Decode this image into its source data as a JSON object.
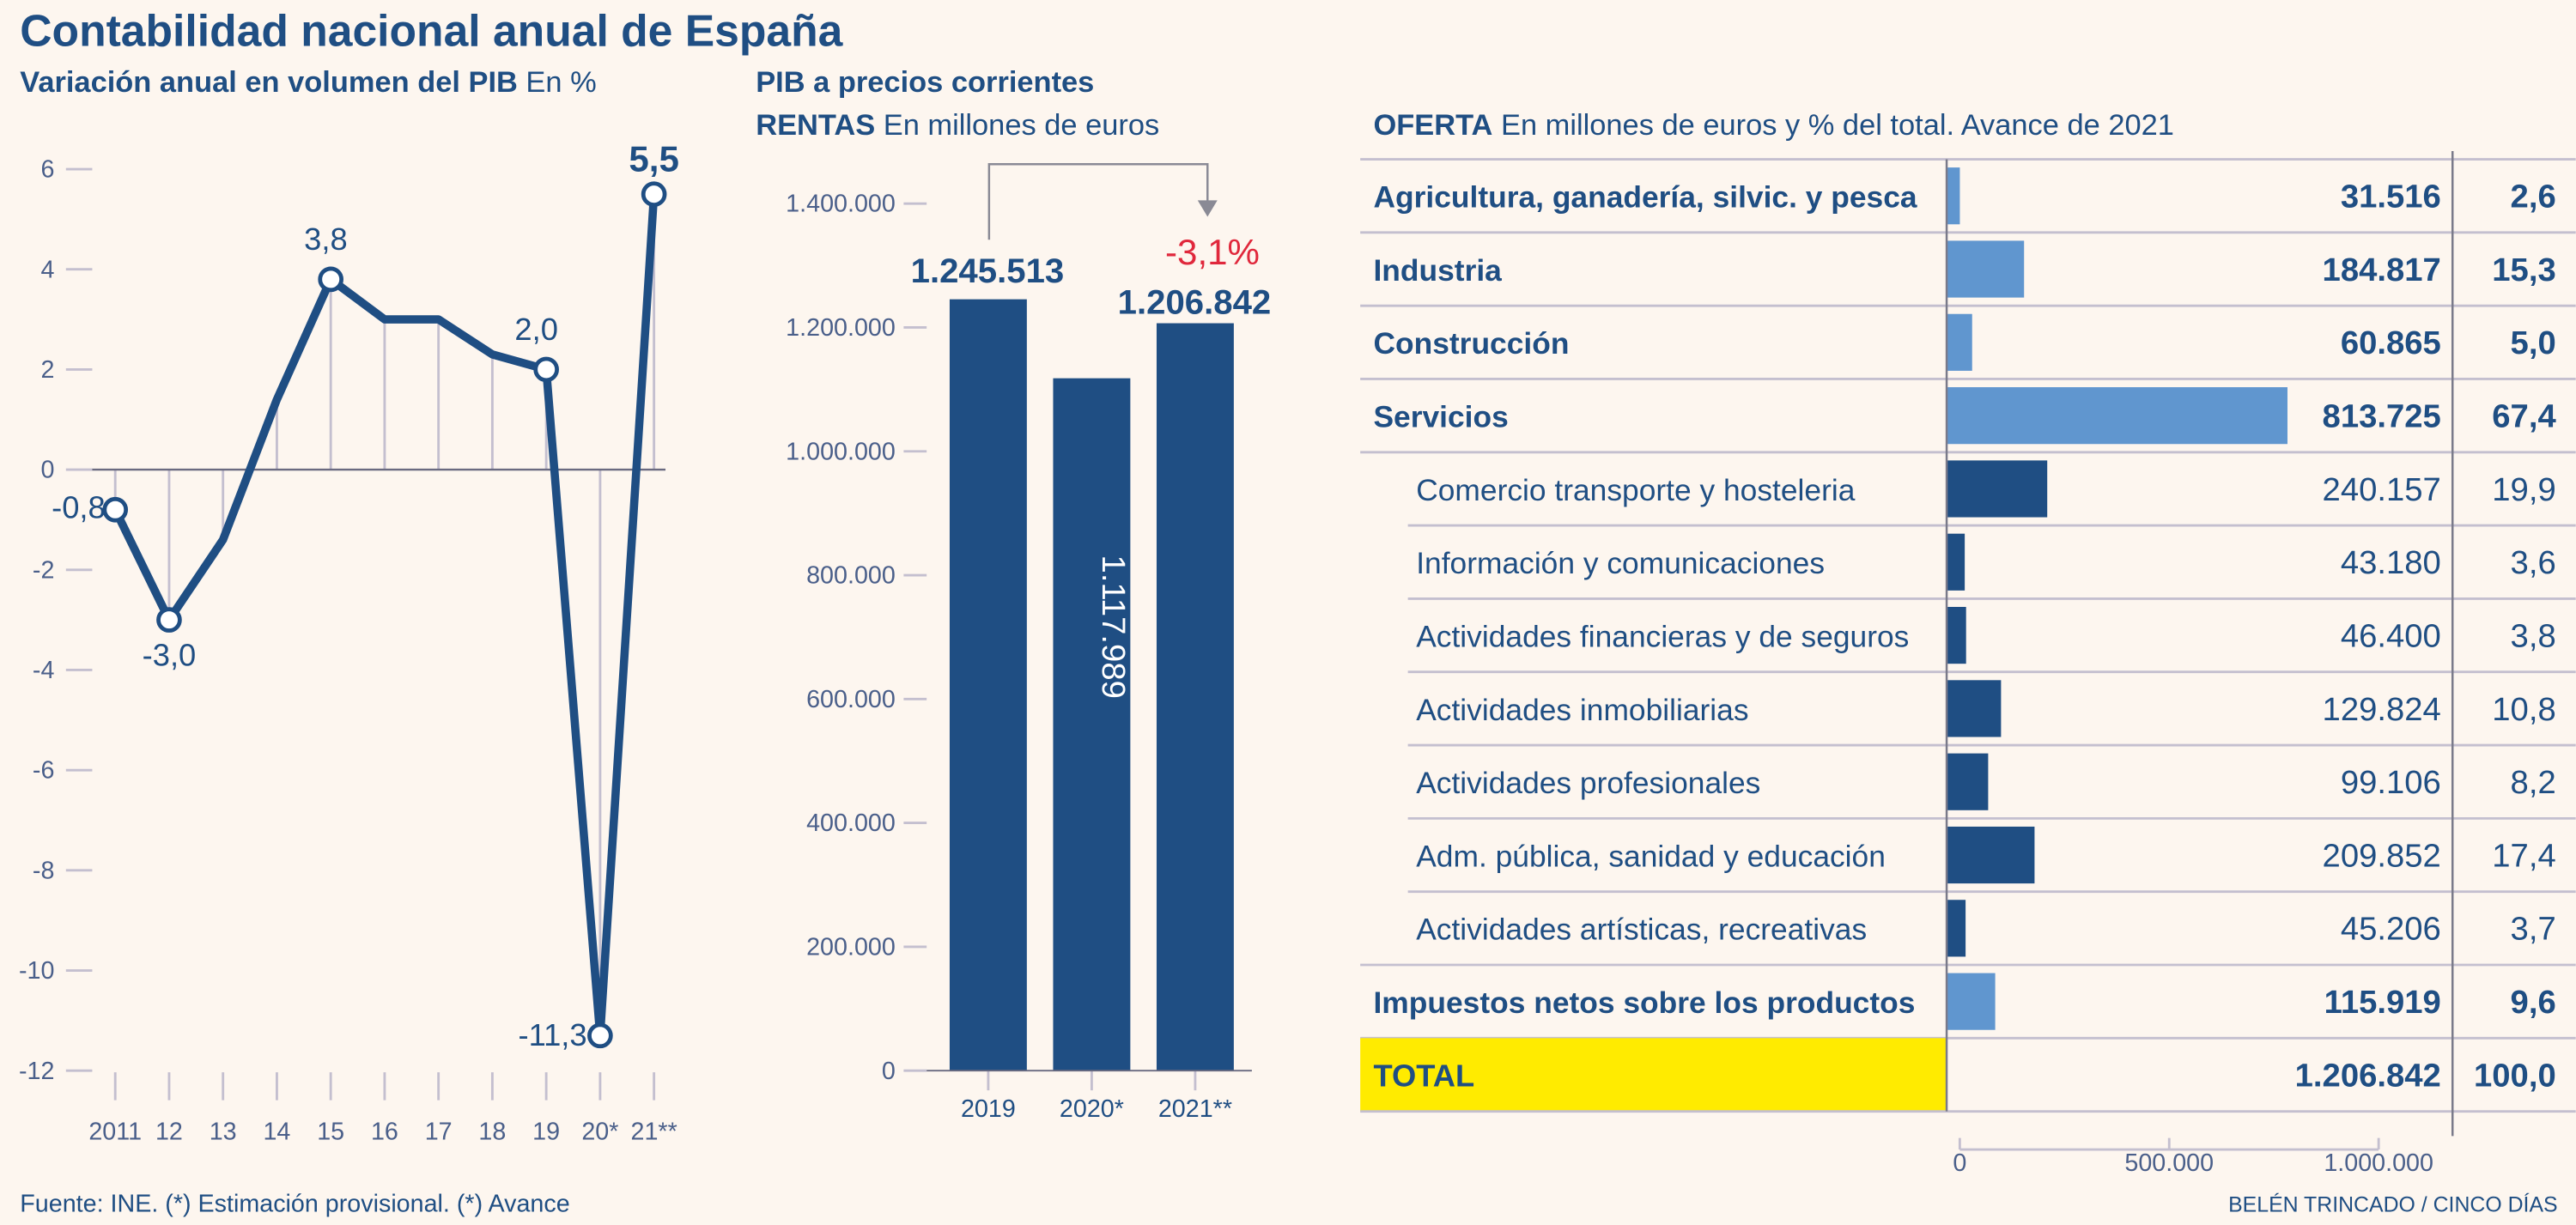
{
  "title": "Contabilidad nacional anual de España",
  "colors": {
    "primary": "#1f4e83",
    "light_bar": "#6096cf",
    "grid": "#c4bfcf",
    "background": "#fdf6ef",
    "highlight": "#e0283c",
    "total": "#ffeb00"
  },
  "footer": {
    "source": "Fuente: INE. (*) Estimación provisional. (*) Avance",
    "credit": "BELÉN TRINCADO / CINCO DÍAS"
  },
  "chart_data": [
    {
      "type": "line",
      "title_bold": "Variación anual en volumen del PIB",
      "title_unit": "En %",
      "categories": [
        "2011",
        "12",
        "13",
        "14",
        "15",
        "16",
        "17",
        "18",
        "19",
        "20*",
        "21**"
      ],
      "values": [
        -0.8,
        -3.0,
        -1.4,
        1.4,
        3.8,
        3.0,
        3.0,
        2.3,
        2.0,
        -11.3,
        5.5
      ],
      "data_labels": [
        "-0,8",
        "-3,0",
        null,
        null,
        "3,8",
        null,
        null,
        null,
        "2,0",
        "-11,3",
        "5,5"
      ],
      "ylim": [
        -12,
        6
      ],
      "yticks": [
        "6",
        "4",
        "2",
        "0",
        "-2",
        "-4",
        "-6",
        "-8",
        "-10",
        "-12"
      ]
    },
    {
      "type": "bar",
      "title": "PIB a precios corrientes",
      "subtitle_bold": "RENTAS",
      "subtitle_unit": "En millones de euros",
      "categories": [
        "2019",
        "2020*",
        "2021**"
      ],
      "values": [
        1245513,
        1117989,
        1206842
      ],
      "data_labels": [
        "1.245.513",
        "1.117.989",
        "1.206.842"
      ],
      "annotation": "-3,1%",
      "ylim": [
        0,
        1400000
      ],
      "yticks": [
        "0",
        "200.000",
        "400.000",
        "600.000",
        "800.000",
        "1.000.000",
        "1.200.000",
        "1.400.000"
      ]
    },
    {
      "type": "table",
      "title_bold": "OFERTA",
      "title_unit": "En millones de euros y % del total. Avance de 2021",
      "rows": [
        {
          "label": "Agricultura, ganadería, silvic. y pesca",
          "value": 31516,
          "value_label": "31.516",
          "pct": "2,6",
          "level": "main"
        },
        {
          "label": "Industria",
          "value": 184817,
          "value_label": "184.817",
          "pct": "15,3",
          "level": "main"
        },
        {
          "label": "Construcción",
          "value": 60865,
          "value_label": "60.865",
          "pct": "5,0",
          "level": "main"
        },
        {
          "label": "Servicios",
          "value": 813725,
          "value_label": "813.725",
          "pct": "67,4",
          "level": "main"
        },
        {
          "label": "Comercio transporte y hosteleria",
          "value": 240157,
          "value_label": "240.157",
          "pct": "19,9",
          "level": "sub"
        },
        {
          "label": "Información y comunicaciones",
          "value": 43180,
          "value_label": "43.180",
          "pct": "3,6",
          "level": "sub"
        },
        {
          "label": "Actividades financieras y de seguros",
          "value": 46400,
          "value_label": "46.400",
          "pct": "3,8",
          "level": "sub"
        },
        {
          "label": "Actividades inmobiliarias",
          "value": 129824,
          "value_label": "129.824",
          "pct": "10,8",
          "level": "sub"
        },
        {
          "label": "Actividades profesionales",
          "value": 99106,
          "value_label": "99.106",
          "pct": "8,2",
          "level": "sub"
        },
        {
          "label": "Adm. pública, sanidad y educación",
          "value": 209852,
          "value_label": "209.852",
          "pct": "17,4",
          "level": "sub"
        },
        {
          "label": "Actividades artísticas, recreativas",
          "value": 45206,
          "value_label": "45.206",
          "pct": "3,7",
          "level": "sub"
        },
        {
          "label": "Impuestos netos sobre los productos",
          "value": 115919,
          "value_label": "115.919",
          "pct": "9,6",
          "level": "main"
        }
      ],
      "total": {
        "label": "TOTAL",
        "value_label": "1.206.842",
        "pct": "100,0"
      },
      "xlim": [
        0,
        1000000
      ],
      "xticks": [
        {
          "v": 0,
          "label": "0"
        },
        {
          "v": 500000,
          "label": "500.000"
        },
        {
          "v": 1000000,
          "label": "1.000.000"
        }
      ]
    }
  ]
}
